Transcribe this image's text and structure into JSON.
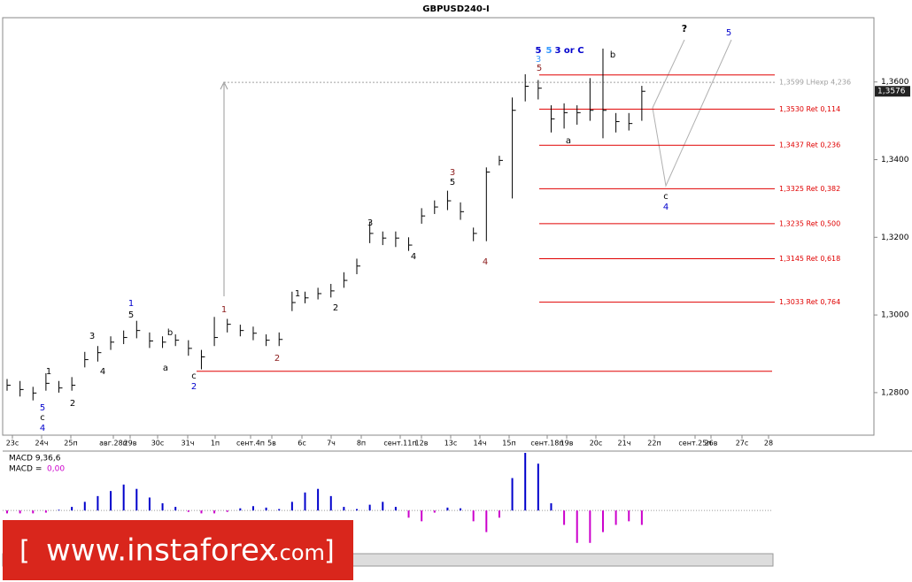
{
  "chart_data": {
    "type": "hlc",
    "title": "GBPUSD240-I",
    "x_labels": [
      "23с",
      "24ч",
      "25п",
      "авг.28п",
      "29в",
      "30с",
      "31ч",
      "1п",
      "сент.4п",
      "5в",
      "6с",
      "7ч",
      "8п",
      "сент.11п",
      "12в",
      "13с",
      "14ч",
      "15п",
      "сент.18п",
      "19в",
      "20с",
      "21ч",
      "22п",
      "сент.25п",
      "26в",
      "27с",
      "28"
    ],
    "series": {
      "high": [
        1.2835,
        1.283,
        1.2815,
        1.285,
        1.283,
        1.284,
        1.2905,
        1.292,
        1.2945,
        1.296,
        1.2985,
        1.2955,
        1.2945,
        1.295,
        1.2935,
        1.291,
        1.2995,
        1.299,
        1.2975,
        1.297,
        1.295,
        1.2955,
        1.306,
        1.306,
        1.307,
        1.308,
        1.311,
        1.3145,
        1.324,
        1.3215,
        1.3215,
        1.32,
        1.3275,
        1.3295,
        1.332,
        1.329,
        1.3225,
        1.338,
        1.341,
        1.356,
        1.362,
        1.3605,
        1.354,
        1.3545,
        1.354,
        1.361,
        1.3686,
        1.352,
        1.352,
        1.359
      ],
      "low": [
        1.2805,
        1.279,
        1.278,
        1.2805,
        1.28,
        1.2805,
        1.2865,
        1.288,
        1.291,
        1.2925,
        1.294,
        1.2915,
        1.2915,
        1.292,
        1.2895,
        1.286,
        1.292,
        1.2955,
        1.2945,
        1.2935,
        1.292,
        1.292,
        1.301,
        1.303,
        1.304,
        1.3045,
        1.307,
        1.3105,
        1.3185,
        1.318,
        1.3175,
        1.3165,
        1.3235,
        1.326,
        1.327,
        1.3245,
        1.319,
        1.319,
        1.3385,
        1.33,
        1.355,
        1.3555,
        1.347,
        1.348,
        1.349,
        1.35,
        1.3455,
        1.347,
        1.3475,
        1.35
      ],
      "close": [
        1.2819,
        1.2808,
        1.2799,
        1.2824,
        1.2812,
        1.2819,
        1.2885,
        1.2903,
        1.293,
        1.2942,
        1.296,
        1.2933,
        1.293,
        1.2935,
        1.2914,
        1.2892,
        1.2942,
        1.2976,
        1.296,
        1.2953,
        1.2935,
        1.2937,
        1.3032,
        1.3044,
        1.3055,
        1.3062,
        1.3089,
        1.3126,
        1.321,
        1.3198,
        1.3198,
        1.318,
        1.3255,
        1.3278,
        1.3294,
        1.3266,
        1.321,
        1.3368,
        1.3398,
        1.3527,
        1.3589,
        1.3584,
        1.3505,
        1.3521,
        1.3521,
        1.3527,
        1.3527,
        1.3498,
        1.3493,
        1.3576
      ]
    },
    "bar_color": "#000000",
    "ylim": [
      1.2695,
      1.3761
    ],
    "yticks": [
      {
        "value": 1.28,
        "label": "1,2800"
      },
      {
        "value": 1.3,
        "label": "1,3000"
      },
      {
        "value": 1.32,
        "label": "1,3200"
      },
      {
        "value": 1.34,
        "label": "1,3400"
      },
      {
        "value": 1.36,
        "label": "1,3600"
      }
    ],
    "current_price": {
      "value": 1.3576,
      "label": "1,3576"
    },
    "levels": [
      {
        "value": 1.3599,
        "label": "1,3599 LHexp 4,236",
        "color": "#a0a0a0"
      },
      {
        "value": 1.353,
        "label": "1,3530 Ret 0,114",
        "color": "#e00000"
      },
      {
        "value": 1.3437,
        "label": "1,3437 Ret 0,236",
        "color": "#e00000"
      },
      {
        "value": 1.3325,
        "label": "1,3325 Ret 0,382",
        "color": "#e00000"
      },
      {
        "value": 1.3235,
        "label": "1,3235 Ret 0,500",
        "color": "#e00000"
      },
      {
        "value": 1.3145,
        "label": "1,3145 Ret 0,618",
        "color": "#e00000"
      },
      {
        "value": 1.3033,
        "label": "1,3033 Ret 0,764",
        "color": "#e00000"
      }
    ],
    "resistance_line": 1.3618,
    "support_line": 1.2855,
    "line_color": "#e00000",
    "wave_labels": [
      "5",
      "c",
      "4",
      "1",
      "2",
      "3",
      "4",
      "1",
      "5",
      "b",
      "a",
      "c",
      "2",
      "1",
      "2",
      "1",
      "2",
      "3",
      "4",
      "3",
      "5",
      "4",
      "5",
      "3",
      "5",
      "5",
      "3 or C",
      "b",
      "a",
      "?",
      "5",
      "c",
      "4"
    ],
    "macd": {
      "title": "MACD 9,36,6",
      "value_caption": "MACD =",
      "value_text": "0,00",
      "ylim": [
        -0.006,
        0.008
      ],
      "positive_color": "#0000cc",
      "negative_color": "#cc00cc",
      "values": [
        -0.0004,
        -0.0004,
        -0.0004,
        -0.0003,
        0.0001,
        0.0005,
        0.0012,
        0.002,
        0.0027,
        0.0036,
        0.003,
        0.0018,
        0.001,
        0.0005,
        -0.0002,
        -0.0004,
        -0.0004,
        -0.0002,
        0.0003,
        0.0006,
        0.0004,
        0.0002,
        0.0012,
        0.0025,
        0.003,
        0.002,
        0.0005,
        0.0002,
        0.0008,
        0.0012,
        0.0005,
        -0.001,
        -0.0015,
        -0.0003,
        0.0004,
        0.0003,
        -0.0015,
        -0.003,
        -0.001,
        0.0045,
        0.008,
        0.0065,
        0.001,
        -0.002,
        -0.0045,
        -0.0045,
        -0.003,
        -0.002,
        -0.0015,
        -0.002
      ]
    },
    "watermark": {
      "open": "[",
      "site": "www.instaforex",
      "tld": ".com",
      "close": "]"
    }
  }
}
